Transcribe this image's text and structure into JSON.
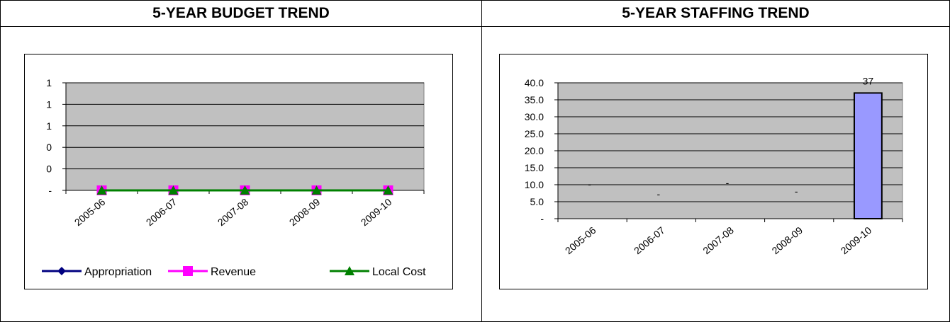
{
  "panels": {
    "budget": {
      "header": "5-YEAR BUDGET TREND"
    },
    "staffing": {
      "header": "5-YEAR STAFFING TREND"
    }
  },
  "chart_data": [
    {
      "type": "line",
      "categories": [
        "2005-06",
        "2006-07",
        "2007-08",
        "2008-09",
        "2009-10"
      ],
      "y_tick_labels": [
        "-",
        "0",
        "0",
        "1",
        "1",
        "1"
      ],
      "ylim": [
        0,
        1
      ],
      "grid": true,
      "plot_background": "#c0c0c0",
      "legend_position": "bottom",
      "series": [
        {
          "name": "Appropriation",
          "values": [
            0,
            0,
            0,
            0,
            0
          ],
          "color": "#000080",
          "marker": "diamond"
        },
        {
          "name": "Revenue",
          "values": [
            0,
            0,
            0,
            0,
            0
          ],
          "color": "#ff00ff",
          "marker": "square"
        },
        {
          "name": "Local Cost",
          "values": [
            0,
            0,
            0,
            0,
            0
          ],
          "color": "#008000",
          "marker": "triangle"
        }
      ]
    },
    {
      "type": "bar",
      "categories": [
        "2005-06",
        "2006-07",
        "2007-08",
        "2008-09",
        "2009-10"
      ],
      "values": [
        0,
        0,
        0,
        0,
        37
      ],
      "data_labels": [
        "-",
        "-",
        "-",
        "-",
        "37"
      ],
      "y_tick_labels": [
        "-",
        "5.0",
        "10.0",
        "15.0",
        "20.0",
        "25.0",
        "30.0",
        "35.0",
        "40.0"
      ],
      "ylim": [
        0,
        40
      ],
      "grid": true,
      "plot_background": "#c0c0c0",
      "bar_color": "#9999ff"
    }
  ]
}
